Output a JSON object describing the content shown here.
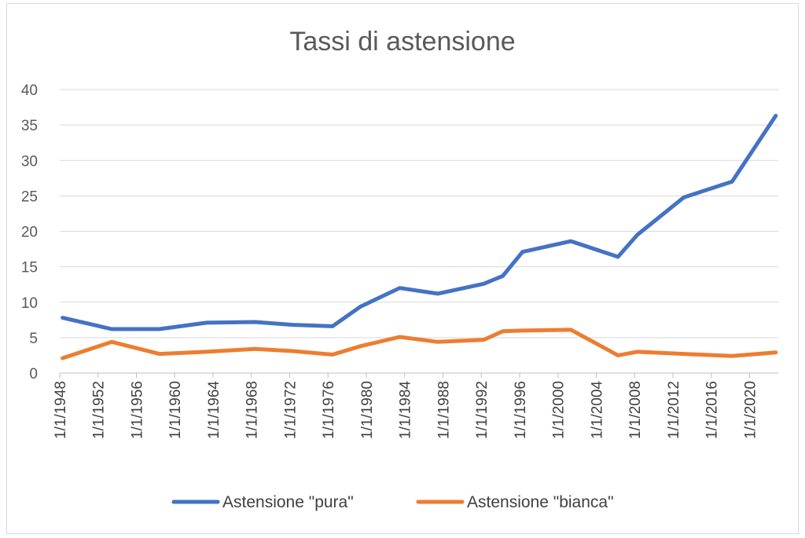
{
  "chart_data": {
    "type": "line",
    "title": "Tassi di astensione",
    "xlabel": "",
    "ylabel": "",
    "ylim": [
      0,
      40
    ],
    "yticks": [
      0,
      5,
      10,
      15,
      20,
      25,
      30,
      35,
      40
    ],
    "xticks": [
      "1/1/1948",
      "1/1/1952",
      "1/1/1956",
      "1/1/1960",
      "1/1/1964",
      "1/1/1968",
      "1/1/1972",
      "1/1/1976",
      "1/1/1980",
      "1/1/1984",
      "1/1/1988",
      "1/1/1992",
      "1/1/1996",
      "1/1/2000",
      "1/1/2004",
      "1/1/2008",
      "1/1/2012",
      "1/1/2016",
      "1/1/2020"
    ],
    "grid": true,
    "legend_position": "bottom",
    "series": [
      {
        "name": "Astensione \"pura\"",
        "color": "#4472c4",
        "points": [
          [
            "1948-04-18",
            7.8
          ],
          [
            "1953-06-07",
            6.2
          ],
          [
            "1958-05-25",
            6.2
          ],
          [
            "1963-04-28",
            7.1
          ],
          [
            "1968-05-19",
            7.2
          ],
          [
            "1972-05-07",
            6.8
          ],
          [
            "1976-06-20",
            6.6
          ],
          [
            "1979-06-03",
            9.4
          ],
          [
            "1983-06-26",
            12.0
          ],
          [
            "1987-06-14",
            11.2
          ],
          [
            "1992-04-05",
            12.6
          ],
          [
            "1994-03-27",
            13.7
          ],
          [
            "1996-04-21",
            17.1
          ],
          [
            "2001-05-13",
            18.6
          ],
          [
            "2006-04-09",
            16.4
          ],
          [
            "2008-04-13",
            19.5
          ],
          [
            "2013-02-24",
            24.8
          ],
          [
            "2018-03-04",
            27.0
          ],
          [
            "2022-09-25",
            36.3
          ]
        ]
      },
      {
        "name": "Astensione \"bianca\"",
        "color": "#ed7d31",
        "points": [
          [
            "1948-04-18",
            2.1
          ],
          [
            "1953-06-07",
            4.4
          ],
          [
            "1958-05-25",
            2.7
          ],
          [
            "1963-04-28",
            3.0
          ],
          [
            "1968-05-19",
            3.4
          ],
          [
            "1972-05-07",
            3.1
          ],
          [
            "1976-06-20",
            2.6
          ],
          [
            "1979-06-03",
            3.8
          ],
          [
            "1983-06-26",
            5.1
          ],
          [
            "1987-06-14",
            4.4
          ],
          [
            "1992-04-05",
            4.7
          ],
          [
            "1994-03-27",
            5.9
          ],
          [
            "1996-04-21",
            6.0
          ],
          [
            "2001-05-13",
            6.1
          ],
          [
            "2006-04-09",
            2.5
          ],
          [
            "2008-04-13",
            3.0
          ],
          [
            "2013-02-24",
            2.7
          ],
          [
            "2018-03-04",
            2.4
          ],
          [
            "2022-09-25",
            2.9
          ]
        ]
      }
    ]
  }
}
